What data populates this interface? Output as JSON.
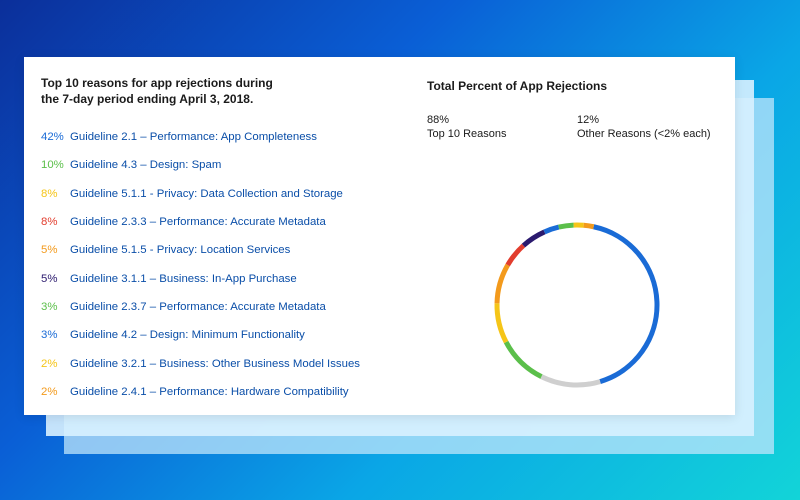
{
  "left_panel": {
    "title_line1": "Top 10 reasons for app rejections during",
    "title_line2": "the 7-day period ending April 3, 2018."
  },
  "right_panel": {
    "title": "Total Percent of App Rejections",
    "stats": [
      {
        "value": "88%",
        "label": "Top 10 Reasons"
      },
      {
        "value": "12%",
        "label": "Other Reasons (<2% each)"
      }
    ]
  },
  "reasons": [
    {
      "pct": "42%",
      "label": "Guideline 2.1 – Performance: App Completeness",
      "color": "#1a6bd6"
    },
    {
      "pct": "10%",
      "label": "Guideline 4.3 – Design: Spam",
      "color": "#5bbf4a"
    },
    {
      "pct": "8%",
      "label": "Guideline 5.1.1 - Privacy: Data Collection and Storage",
      "color": "#f5c518"
    },
    {
      "pct": "8%",
      "label": "Guideline 2.3.3 – Performance: Accurate Metadata",
      "color": "#e23d2e"
    },
    {
      "pct": "5%",
      "label": "Guideline 5.1.5 - Privacy: Location Services",
      "color": "#f39a1c"
    },
    {
      "pct": "5%",
      "label": "Guideline 3.1.1 – Business: In-App Purchase",
      "color": "#2b1a6e"
    },
    {
      "pct": "3%",
      "label": "Guideline 2.3.7 – Performance: Accurate Metadata",
      "color": "#5bbf4a"
    },
    {
      "pct": "3%",
      "label": "Guideline 4.2 – Design: Minimum Functionality",
      "color": "#1a6bd6"
    },
    {
      "pct": "2%",
      "label": "Guideline 3.2.1 – Business: Other Business Model Issues",
      "color": "#f5c518"
    },
    {
      "pct": "2%",
      "label": "Guideline 2.4.1 – Performance: Hardware Compatibility",
      "color": "#f39a1c"
    }
  ],
  "chart_data": {
    "type": "pie",
    "title": "Total Percent of App Rejections",
    "donut": true,
    "slices": [
      {
        "value": 42,
        "color": "#1a6bd6"
      },
      {
        "value": 12,
        "color": "#cfcfcf"
      },
      {
        "value": 10,
        "color": "#5bbf4a"
      },
      {
        "value": 8,
        "color": "#f5c518"
      },
      {
        "value": 8,
        "color": "#f39a1c"
      },
      {
        "value": 5,
        "color": "#e23d2e"
      },
      {
        "value": 5,
        "color": "#2b1a6e"
      },
      {
        "value": 3,
        "color": "#1a6bd6"
      },
      {
        "value": 3,
        "color": "#5bbf4a"
      },
      {
        "value": 2,
        "color": "#f5c518"
      },
      {
        "value": 2,
        "color": "#f39a1c"
      }
    ]
  }
}
